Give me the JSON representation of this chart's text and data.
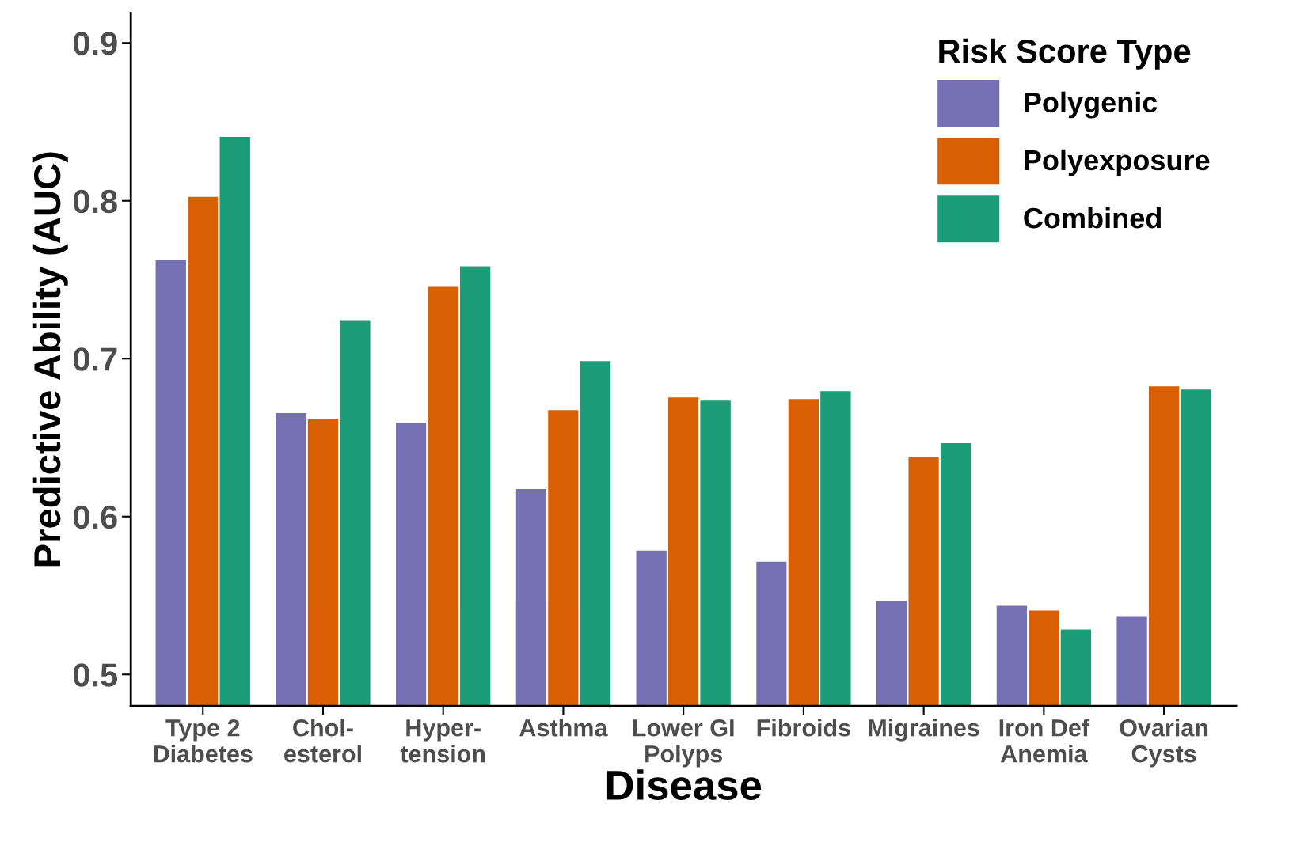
{
  "chart_data": {
    "type": "bar",
    "xlabel": "Disease",
    "ylabel": "Predictive Ability (AUC)",
    "legend_title": "Risk Score Type",
    "categories": [
      "Type 2\nDiabetes",
      "Chol-\nesterol",
      "Hyper-\ntension",
      "Asthma",
      "Lower GI\nPolyps",
      "Fibroids",
      "Migraines",
      "Iron Def\nAnemia",
      "Ovarian\nCysts"
    ],
    "series": [
      {
        "name": "Polygenic",
        "color": "#7570b3",
        "values": [
          0.763,
          0.666,
          0.66,
          0.618,
          0.579,
          0.572,
          0.547,
          0.544,
          0.537
        ]
      },
      {
        "name": "Polyexposure",
        "color": "#d95f02",
        "values": [
          0.803,
          0.662,
          0.746,
          0.668,
          0.676,
          0.675,
          0.638,
          0.541,
          0.683
        ]
      },
      {
        "name": "Combined",
        "color": "#1b9e77",
        "values": [
          0.841,
          0.725,
          0.759,
          0.699,
          0.674,
          0.68,
          0.647,
          0.529,
          0.681
        ]
      }
    ],
    "ylim": [
      0.48,
      0.919
    ],
    "yticks": [
      0.5,
      0.6,
      0.7,
      0.8,
      0.9
    ],
    "grid": false,
    "legend": "top right"
  }
}
